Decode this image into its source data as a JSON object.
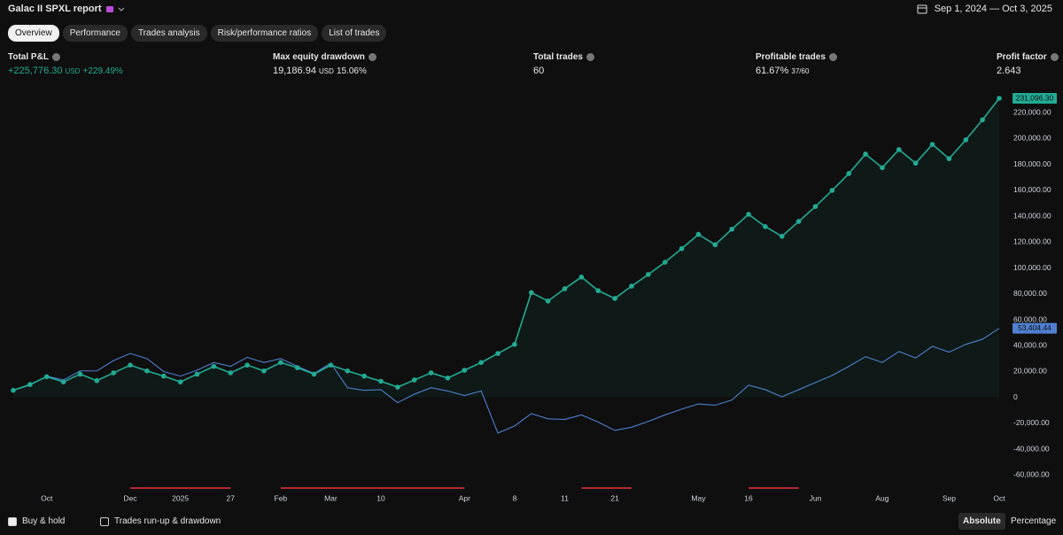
{
  "header": {
    "title": "Galac II SPXL report",
    "date_range": "Sep 1, 2024 — Oct 3, 2025"
  },
  "tabs": [
    "Overview",
    "Performance",
    "Trades analysis",
    "Risk/performance ratios",
    "List of trades"
  ],
  "active_tab": 0,
  "metrics": [
    {
      "label": "Total P&L",
      "value": "+225,776.30",
      "unit": "USD",
      "change": "+229.49%",
      "color": "#22ab94"
    },
    {
      "label": "Max equity drawdown",
      "value": "19,186.94",
      "unit": "USD",
      "change": "15.06%",
      "color": "#e6e6e6"
    },
    {
      "label": "Total trades",
      "value": "60",
      "color": "#e6e6e6"
    },
    {
      "label": "Profitable trades",
      "value": "61.67%",
      "change": "37/60",
      "color": "#e6e6e6"
    },
    {
      "label": "Profit factor",
      "value": "2.643",
      "color": "#e6e6e6"
    }
  ],
  "chart_data": {
    "type": "line",
    "x": [
      0,
      1,
      2,
      3,
      4,
      5,
      6,
      7,
      8,
      9,
      10,
      11,
      12,
      13,
      14,
      15,
      16,
      17,
      18,
      19,
      20,
      21,
      22,
      23,
      24,
      25,
      26,
      27,
      28,
      29,
      30,
      31,
      32,
      33,
      34,
      35,
      36,
      37,
      38,
      39,
      40,
      41,
      42,
      43,
      44,
      45,
      46,
      47,
      48,
      49,
      50,
      51,
      52,
      53,
      54,
      55,
      56,
      57,
      58,
      59
    ],
    "xlim": [
      0,
      59
    ],
    "xticks": [
      {
        "value": 2,
        "label": "Oct"
      },
      {
        "value": 7,
        "label": "Dec"
      },
      {
        "value": 10,
        "label": "2025"
      },
      {
        "value": 13,
        "label": "27"
      },
      {
        "value": 16,
        "label": "Feb"
      },
      {
        "value": 19,
        "label": "Mar"
      },
      {
        "value": 22,
        "label": "10"
      },
      {
        "value": 27,
        "label": "Apr"
      },
      {
        "value": 30,
        "label": "8"
      },
      {
        "value": 33,
        "label": "11"
      },
      {
        "value": 36,
        "label": "21"
      },
      {
        "value": 41,
        "label": "May"
      },
      {
        "value": 44,
        "label": "16"
      },
      {
        "value": 48,
        "label": "Jun"
      },
      {
        "value": 52,
        "label": "Aug"
      },
      {
        "value": 56,
        "label": "Sep"
      },
      {
        "value": 59,
        "label": "Oct"
      }
    ],
    "ylim": [
      -70000,
      240000
    ],
    "yticks": [
      {
        "value": -60000,
        "label": "-60,000.00"
      },
      {
        "value": -40000,
        "label": "-40,000.00"
      },
      {
        "value": -20000,
        "label": "-20,000.00"
      },
      0,
      {
        "value": 20000,
        "label": "20,000.00"
      },
      {
        "value": 40000,
        "label": "40,000.00"
      },
      {
        "value": 60000,
        "label": "60,000.00"
      },
      {
        "value": 80000,
        "label": "80,000.00"
      },
      {
        "value": 100000,
        "label": "100,000.00"
      },
      {
        "value": 120000,
        "label": "120,000.00"
      },
      {
        "value": 140000,
        "label": "140,000.00"
      },
      {
        "value": 160000,
        "label": "160,000.00"
      },
      {
        "value": 180000,
        "label": "180,000.00"
      },
      {
        "value": 200000,
        "label": "200,000.00"
      },
      {
        "value": 220000,
        "label": "220,000.00"
      }
    ],
    "grid": false,
    "series": [
      {
        "color": "#22ab94",
        "markers": true,
        "area": true,
        "values": [
          5500,
          10000,
          16000,
          12000,
          18000,
          13000,
          19000,
          25000,
          20500,
          16500,
          12000,
          18000,
          24000,
          19000,
          25000,
          20500,
          27000,
          23000,
          18000,
          25000,
          20500,
          16500,
          12500,
          8000,
          13500,
          19000,
          15000,
          21000,
          27000,
          34000,
          41000,
          81000,
          74500,
          84000,
          93000,
          82500,
          76500,
          86000,
          95000,
          104500,
          115000,
          126000,
          118000,
          130000,
          141500,
          132000,
          124500,
          136000,
          147500,
          160000,
          173000,
          188000,
          177500,
          191500,
          181000,
          195500,
          184500,
          199000,
          214500,
          231096.3
        ],
        "value_labels": [
          null,
          null,
          null,
          null,
          null,
          null,
          null,
          null,
          null,
          null,
          null,
          null,
          null,
          null,
          null,
          null,
          null,
          null,
          null,
          null,
          null,
          null,
          null,
          null,
          null,
          null,
          null,
          null,
          null,
          null,
          null,
          null,
          null,
          null,
          null,
          null,
          null,
          null,
          null,
          null,
          null,
          null,
          null,
          null,
          null,
          null,
          null,
          null,
          null,
          null,
          null,
          null,
          null,
          null,
          null,
          null,
          null,
          null,
          null,
          "231,096.30"
        ]
      },
      {
        "color": "#4f7fd0",
        "markers": false,
        "area": false,
        "values": [
          5500,
          9500,
          16500,
          13500,
          20500,
          20500,
          28500,
          34000,
          30000,
          20000,
          16500,
          21000,
          27000,
          24000,
          31000,
          27000,
          30000,
          24000,
          18500,
          26500,
          7500,
          5500,
          6000,
          -4000,
          2500,
          7500,
          5000,
          1500,
          5000,
          -27500,
          -22000,
          -12500,
          -16500,
          -17000,
          -13500,
          -19000,
          -25500,
          -23000,
          -18500,
          -13500,
          -9000,
          -5000,
          -6000,
          -2000,
          9500,
          6000,
          500,
          6000,
          11500,
          17000,
          24000,
          31500,
          27000,
          35500,
          30500,
          39500,
          35000,
          41000,
          45000,
          53404.44
        ],
        "value_labels": [
          null,
          null,
          null,
          null,
          null,
          null,
          null,
          null,
          null,
          null,
          null,
          null,
          null,
          null,
          null,
          null,
          null,
          null,
          null,
          null,
          null,
          null,
          null,
          null,
          null,
          null,
          null,
          null,
          null,
          null,
          null,
          null,
          null,
          null,
          null,
          null,
          null,
          null,
          null,
          null,
          null,
          null,
          null,
          null,
          null,
          null,
          null,
          null,
          null,
          null,
          null,
          null,
          null,
          null,
          null,
          null,
          null,
          null,
          null,
          "53,404.44"
        ]
      }
    ],
    "highlights": [
      [
        7,
        13
      ],
      [
        16,
        27
      ],
      [
        34,
        37
      ],
      [
        44,
        47
      ]
    ],
    "highlight_color": "#b22833"
  },
  "footer": {
    "toggles": [
      {
        "label": "Buy & hold",
        "checked": true
      },
      {
        "label": "Trades run-up & drawdown",
        "checked": false
      }
    ],
    "modes": [
      "Absolute",
      "Percentage"
    ],
    "active_mode": 0
  }
}
